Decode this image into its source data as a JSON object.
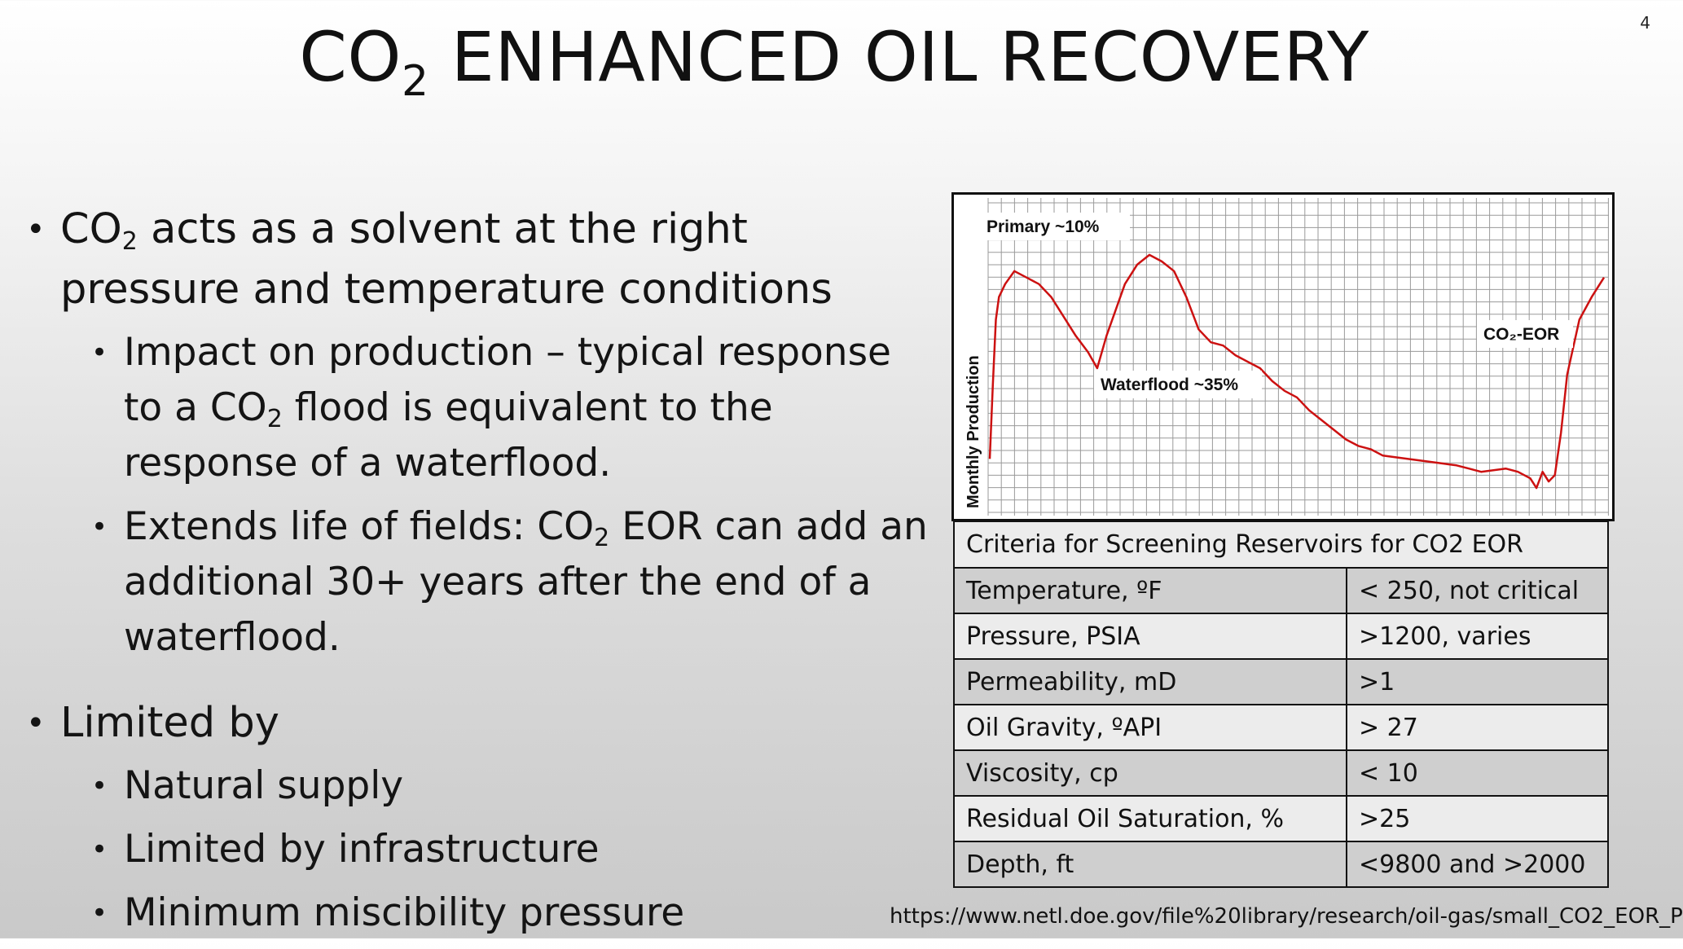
{
  "slide_number": "4",
  "title": {
    "pre": "CO",
    "sub": "2",
    "post": " ENHANCED OIL RECOVERY"
  },
  "bullets": {
    "b1": {
      "pre": "CO",
      "sub": "2",
      "post": " acts as a solvent at the right pressure and temperature conditions"
    },
    "b1_1": {
      "pre": "Impact on production – typical response to a CO",
      "sub": "2",
      "post": " flood is equivalent to the response of a waterflood."
    },
    "b1_2": {
      "pre": "Extends life of fields: CO",
      "sub": "2",
      "post": " EOR can add an additional 30+ years after the end of a waterflood."
    },
    "b2": "Limited by",
    "b2_1": "Natural supply",
    "b2_2": "Limited by infrastructure",
    "b2_3": "Minimum miscibility pressure"
  },
  "chart_data": {
    "type": "line",
    "ylabel": "Monthly Production",
    "xlabel": "",
    "annotations": [
      {
        "text": "Primary ~10%"
      },
      {
        "text": "Waterflood ~35%"
      },
      {
        "text": "CO₂-EOR"
      }
    ],
    "grid": true,
    "line_color": "#cc1111",
    "series": [
      {
        "x": [
          0,
          0.5,
          1,
          1.5,
          2.5,
          4,
          6,
          8,
          10,
          12,
          14,
          16,
          17.5,
          19,
          20.5,
          22,
          24,
          26,
          28,
          30,
          32,
          34,
          36,
          38,
          40,
          42,
          44,
          46,
          48,
          50,
          52,
          54,
          56,
          58,
          60,
          62,
          64,
          66,
          68,
          70,
          72,
          74,
          76,
          78,
          80,
          82,
          84,
          86,
          88,
          89,
          90,
          91,
          92,
          93,
          94,
          96,
          98,
          100
        ],
        "values": [
          12,
          35,
          55,
          62,
          66,
          70,
          68,
          66,
          62,
          56,
          50,
          45,
          40,
          50,
          58,
          66,
          72,
          75,
          73,
          70,
          62,
          52,
          48,
          47,
          44,
          42,
          40,
          36,
          33,
          31,
          27,
          24,
          21,
          18,
          16,
          15,
          13,
          12.5,
          12,
          11.5,
          11,
          10.5,
          10,
          9,
          8,
          8.5,
          9,
          8,
          6,
          3,
          8,
          5,
          7,
          20,
          38,
          55,
          62,
          68
        ]
      }
    ]
  },
  "criteria_table": {
    "title": "Criteria for  Screening Reservoirs for  CO2 EOR",
    "rows": [
      {
        "k": "Temperature, ºF",
        "v": "< 250, not critical"
      },
      {
        "k": "Pressure, PSIA",
        "v": ">1200, varies"
      },
      {
        "k": "Permeability, mD",
        "v": ">1"
      },
      {
        "k": "Oil Gravity, ºAPI",
        "v": "> 27"
      },
      {
        "k": "Viscosity, cp",
        "v": "< 10"
      },
      {
        "k": "Residual Oil Saturation, %",
        "v": ">25"
      },
      {
        "k": "Depth,   ft",
        "v": "<9800 and >2000"
      }
    ]
  },
  "source_url": "https://www.netl.doe.gov/file%20library/research/oil-gas/small_CO2_EOR_P"
}
